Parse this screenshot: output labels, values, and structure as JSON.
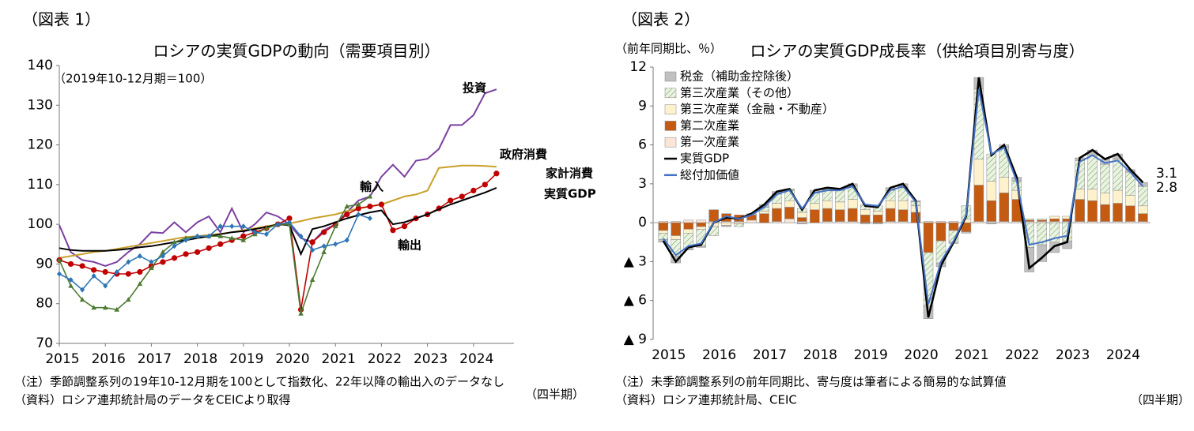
{
  "chart_data": [
    {
      "type": "line",
      "figure_label": "（図表 1）",
      "title": "ロシアの実質GDPの動向（需要項目別）",
      "subtitle": "（2019年10-12月期＝100）",
      "notes": [
        "（注）季節調整系列の19年10-12月期を100として指数化、22年以降の輸出入のデータなし",
        "（資料）ロシア連邦統計局のデータをCEICより取得"
      ],
      "x_unit": "（四半期）",
      "x": [
        2015,
        2015.25,
        2015.5,
        2015.75,
        2016,
        2016.25,
        2016.5,
        2016.75,
        2017,
        2017.25,
        2017.5,
        2017.75,
        2018,
        2018.25,
        2018.5,
        2018.75,
        2019,
        2019.25,
        2019.5,
        2019.75,
        2020,
        2020.25,
        2020.5,
        2020.75,
        2021,
        2021.25,
        2021.5,
        2021.75,
        2022,
        2022.25,
        2022.5,
        2022.75,
        2023,
        2023.25,
        2023.5,
        2023.75,
        2024,
        2024.25,
        2024.5
      ],
      "xlim": [
        2015,
        2024.88
      ],
      "xticks": [
        2015,
        2016,
        2017,
        2018,
        2019,
        2020,
        2021,
        2022,
        2023,
        2024
      ],
      "ylim": [
        70,
        140
      ],
      "yticks": [
        70,
        80,
        90,
        100,
        110,
        120,
        130,
        140
      ],
      "series": [
        {
          "name": "投資",
          "color": "#7b3fa0",
          "values": [
            99.8,
            93,
            91,
            90.5,
            89.5,
            90.5,
            93,
            95,
            98,
            97.8,
            100.5,
            98,
            100.5,
            102,
            98,
            104,
            98,
            100,
            103,
            102,
            100,
            96.5,
            95.5,
            98.5,
            100,
            103,
            106,
            107,
            112,
            115,
            112,
            116,
            116.5,
            119,
            125,
            125,
            127.5,
            133,
            134
          ]
        },
        {
          "name": "政府消費",
          "color": "#c8a02a",
          "values": [
            91.5,
            92,
            92.5,
            93,
            93.3,
            93.8,
            94.3,
            94.8,
            95.3,
            95.8,
            96.3,
            96.8,
            97,
            97.3,
            97.6,
            98,
            98.5,
            99,
            99.5,
            100,
            100.2,
            100.8,
            101.5,
            102,
            102.5,
            103.3,
            104,
            104.5,
            105,
            106,
            107,
            107.5,
            108.5,
            114.2,
            114.5,
            114.8,
            114.8,
            114.7,
            114.5
          ]
        },
        {
          "name": "家計消費",
          "color": "#c00000",
          "marker": "circle",
          "values": [
            91,
            90,
            89.5,
            88.5,
            88,
            87.5,
            87.5,
            88,
            89.5,
            90.5,
            91.5,
            92.5,
            93,
            94,
            95,
            96,
            97,
            98,
            99,
            100,
            101.5,
            78.5,
            95.5,
            98,
            100,
            102.5,
            104,
            104.5,
            105,
            98.5,
            99.5,
            101.5,
            102.5,
            104,
            106,
            107,
            108.5,
            110,
            112.8
          ]
        },
        {
          "name": "実質GDP",
          "color": "#000000",
          "values": [
            94,
            93.5,
            93.3,
            93.3,
            93.3,
            93.5,
            93.8,
            94.2,
            94.5,
            95,
            95.5,
            96,
            96.5,
            97,
            97.5,
            98,
            98.3,
            98.8,
            99.3,
            100,
            99.8,
            92.5,
            98.8,
            99.5,
            100.5,
            101.5,
            102.3,
            103,
            103.5,
            100,
            100.5,
            101.5,
            102.5,
            103.8,
            105,
            106,
            107,
            108,
            109.2
          ]
        },
        {
          "name": "輸入",
          "color": "#4e7a32",
          "marker": "triangle",
          "values": [
            91,
            84.5,
            81,
            79,
            79,
            78.5,
            81,
            85,
            89,
            93,
            95.5,
            96.5,
            97,
            97,
            97,
            96.5,
            96,
            97.5,
            99,
            100,
            100,
            77.5,
            86,
            93,
            99.5,
            104.5,
            105,
            107,
            null,
            null,
            null,
            null,
            null,
            null,
            null,
            null,
            null,
            null,
            null
          ]
        },
        {
          "name": "輸出",
          "color": "#2e75b6",
          "marker": "diamond",
          "values": [
            87.5,
            86,
            83.5,
            87,
            84.5,
            88,
            90.5,
            92,
            90.5,
            92,
            94.5,
            96,
            97,
            97,
            99.5,
            99.5,
            99.5,
            98,
            97.5,
            100,
            100.5,
            97,
            93.5,
            94.5,
            95,
            96,
            102.5,
            101.5,
            null,
            null,
            null,
            null,
            null,
            null,
            null,
            null,
            null,
            null,
            null
          ]
        }
      ]
    },
    {
      "type": "bar",
      "stacked": true,
      "figure_label": "（図表 2）",
      "title": "ロシアの実質GDP成長率（供給項目別寄与度）",
      "y_unit": "（前年同期比、％）",
      "notes": [
        "（注）未季節調整系列の前年同期比、寄与度は筆者による簡易的な試算値",
        "（資料）ロシア連邦統計局、CEIC"
      ],
      "x_unit": "（四半期）",
      "annotations": [
        "3.1",
        "2.8"
      ],
      "x": [
        2015,
        2015.25,
        2015.5,
        2015.75,
        2016,
        2016.25,
        2016.5,
        2016.75,
        2017,
        2017.25,
        2017.5,
        2017.75,
        2018,
        2018.25,
        2018.5,
        2018.75,
        2019,
        2019.25,
        2019.5,
        2019.75,
        2020,
        2020.25,
        2020.5,
        2020.75,
        2021,
        2021.25,
        2021.5,
        2021.75,
        2022,
        2022.25,
        2022.5,
        2022.75,
        2023,
        2023.25,
        2023.5,
        2023.75,
        2024,
        2024.25,
        2024.5
      ],
      "xlim": [
        2014.8,
        2024.65
      ],
      "xticks": [
        2015,
        2016,
        2017,
        2018,
        2019,
        2020,
        2021,
        2022,
        2023,
        2024
      ],
      "ylim": [
        -9,
        12
      ],
      "yticks": [
        {
          "value": -9,
          "label": "▲ 9"
        },
        {
          "value": -6,
          "label": "▲ 6"
        },
        {
          "value": -3,
          "label": "▲ 3"
        },
        0,
        3,
        6,
        9,
        12
      ],
      "legend": "upper left",
      "series": [
        {
          "name": "税金（補助金控除後）",
          "color": "#c0c0c0",
          "values": [
            -0.2,
            -0.5,
            -0.1,
            -0.1,
            0,
            -0.1,
            0,
            0.1,
            0.2,
            0.2,
            0.1,
            -0.1,
            0.2,
            0.2,
            0.1,
            0.2,
            -0.1,
            -0.1,
            0.2,
            0.3,
            0.1,
            -1,
            -0.3,
            -0.1,
            -0.1,
            0.9,
            -0.1,
            0.2,
            0.3,
            -1.9,
            -1.3,
            -0.8,
            -0.6,
            0.2,
            0.4,
            0.4,
            0.4,
            0.2,
            0.3
          ]
        },
        {
          "name": "第三次産業（その他）",
          "color": "#e3efd9",
          "hatch": true,
          "values": [
            -0.5,
            -1.3,
            -1.2,
            -1.3,
            -0.7,
            0,
            -0.2,
            0,
            0.3,
            0.7,
            0.8,
            0.3,
            0.8,
            0.8,
            0.9,
            1,
            0.4,
            0.4,
            0.8,
            1,
            0.3,
            -4.1,
            -1.7,
            -0.9,
            1,
            5.4,
            2.1,
            2.3,
            0.7,
            -1.9,
            -1.7,
            -1.5,
            -1.4,
            2.2,
            2.6,
            2.2,
            2.4,
            1.8,
            1.5
          ]
        },
        {
          "name": "第三次産業（金融・不動産）",
          "color": "#fdf2cc",
          "values": [
            -0.2,
            -0.3,
            -0.3,
            -0.2,
            -0.3,
            -0.2,
            -0.1,
            0,
            0.2,
            0.4,
            0.5,
            0.4,
            0.5,
            0.6,
            0.6,
            0.7,
            0.4,
            0.3,
            0.6,
            0.7,
            0.5,
            0,
            0,
            0,
            0.3,
            2,
            1.5,
            1.2,
            0.7,
            0.1,
            0.1,
            0.2,
            0.2,
            0.8,
            0.9,
            0.9,
            1,
            0.8,
            0.6
          ]
        },
        {
          "name": "第二次産業",
          "color": "#c55a11",
          "values": [
            -0.6,
            -1,
            -0.5,
            -0.3,
            0.9,
            0.6,
            0.5,
            0.4,
            0.7,
            1,
            0.9,
            0.3,
            1,
            1,
            0.9,
            1,
            0.6,
            0.6,
            1,
            0.9,
            0.8,
            -2.3,
            -1.4,
            -0.6,
            -0.7,
            2.8,
            1.6,
            2.2,
            1.7,
            0.1,
            0.1,
            0.2,
            0.2,
            1.7,
            1.6,
            1.3,
            1.4,
            1.2,
            0.6
          ]
        },
        {
          "name": "第一次産業",
          "color": "#fbe5d6",
          "values": [
            0.1,
            0.1,
            0.2,
            0.2,
            0.1,
            0.1,
            0.1,
            0.2,
            0,
            0.1,
            0.3,
            0.1,
            0,
            0.1,
            0.1,
            0.1,
            0,
            0,
            0.1,
            0.1,
            0,
            0.1,
            0.1,
            0.1,
            0,
            0.1,
            0.1,
            0.1,
            0.1,
            0.1,
            0.1,
            0.1,
            0.1,
            0.1,
            0.1,
            0.1,
            0.1,
            0.1,
            0.1
          ]
        },
        {
          "name": "実質GDP",
          "type": "line",
          "color": "#000000",
          "values": [
            -1.4,
            -3,
            -1.9,
            -1.7,
            0,
            0.4,
            0.3,
            0.7,
            1.4,
            2.4,
            2.6,
            1,
            2.5,
            2.7,
            2.6,
            3,
            1.3,
            1.2,
            2.7,
            3,
            1.7,
            -7.3,
            -3.3,
            -1.5,
            0.5,
            11.2,
            5.2,
            6,
            3.5,
            -3.5,
            -2.7,
            -1.8,
            -1.5,
            5,
            5.6,
            4.9,
            5.3,
            4.1,
            3.1
          ]
        },
        {
          "name": "総付加価値",
          "type": "line",
          "color": "#4472c4",
          "values": [
            -1.2,
            -2.5,
            -1.8,
            -1.6,
            0,
            0.5,
            0.3,
            0.6,
            1.2,
            2.2,
            2.5,
            1.1,
            2.3,
            2.5,
            2.5,
            2.8,
            1.4,
            1.3,
            2.5,
            2.8,
            1.6,
            -6.3,
            -3,
            -1.4,
            0.6,
            10.3,
            5.3,
            5.8,
            3.2,
            -1.7,
            -1.5,
            -1.2,
            -1,
            4.7,
            5.2,
            4.6,
            4.8,
            3.9,
            2.8
          ]
        }
      ]
    }
  ]
}
